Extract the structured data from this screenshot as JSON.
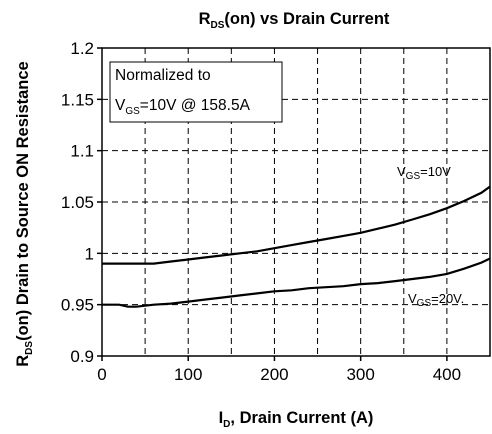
{
  "chart_data": {
    "type": "line",
    "title": {
      "main": "R",
      "sub": "DS",
      "rest": "(on) vs Drain Current"
    },
    "xlabel": {
      "main": "I",
      "sub": "D",
      "rest": ", Drain Current (A)"
    },
    "ylabel": {
      "main": "R",
      "sub": "DS",
      "rest": "(on) Drain to Source ON Resistance"
    },
    "xlim": [
      0,
      450
    ],
    "ylim": [
      0.9,
      1.2
    ],
    "x_ticks": [
      0,
      100,
      200,
      300,
      400
    ],
    "y_ticks": [
      "0.9",
      "0.95",
      "1",
      "1.05",
      "1.1",
      "1.15",
      "1.2"
    ],
    "x_tick_labels": [
      "0",
      "100",
      "200",
      "300",
      "400"
    ],
    "grid": true,
    "annotation": {
      "line1": "Normalized to",
      "line2_main": "V",
      "line2_sub": "GS",
      "line2_rest": "=10V @ 158.5A"
    },
    "series": [
      {
        "label_main": "V",
        "label_sub": "GS",
        "label_rest": "=10V",
        "x": [
          0,
          20,
          40,
          60,
          80,
          100,
          120,
          140,
          160,
          180,
          200,
          220,
          240,
          260,
          280,
          300,
          320,
          340,
          360,
          380,
          400,
          420,
          440,
          450
        ],
        "y": [
          0.99,
          0.99,
          0.99,
          0.99,
          0.992,
          0.994,
          0.996,
          0.998,
          1.0,
          1.002,
          1.005,
          1.008,
          1.011,
          1.014,
          1.017,
          1.02,
          1.024,
          1.028,
          1.033,
          1.038,
          1.044,
          1.051,
          1.059,
          1.065
        ]
      },
      {
        "label_main": "V",
        "label_sub": "GS",
        "label_rest": "=20V.",
        "x": [
          0,
          20,
          30,
          40,
          60,
          80,
          100,
          120,
          140,
          160,
          180,
          200,
          220,
          240,
          260,
          280,
          300,
          320,
          340,
          360,
          380,
          400,
          420,
          440,
          450
        ],
        "y": [
          0.95,
          0.95,
          0.948,
          0.948,
          0.95,
          0.951,
          0.953,
          0.955,
          0.957,
          0.959,
          0.961,
          0.963,
          0.964,
          0.966,
          0.967,
          0.968,
          0.97,
          0.971,
          0.973,
          0.975,
          0.977,
          0.98,
          0.985,
          0.991,
          0.995
        ]
      }
    ]
  }
}
